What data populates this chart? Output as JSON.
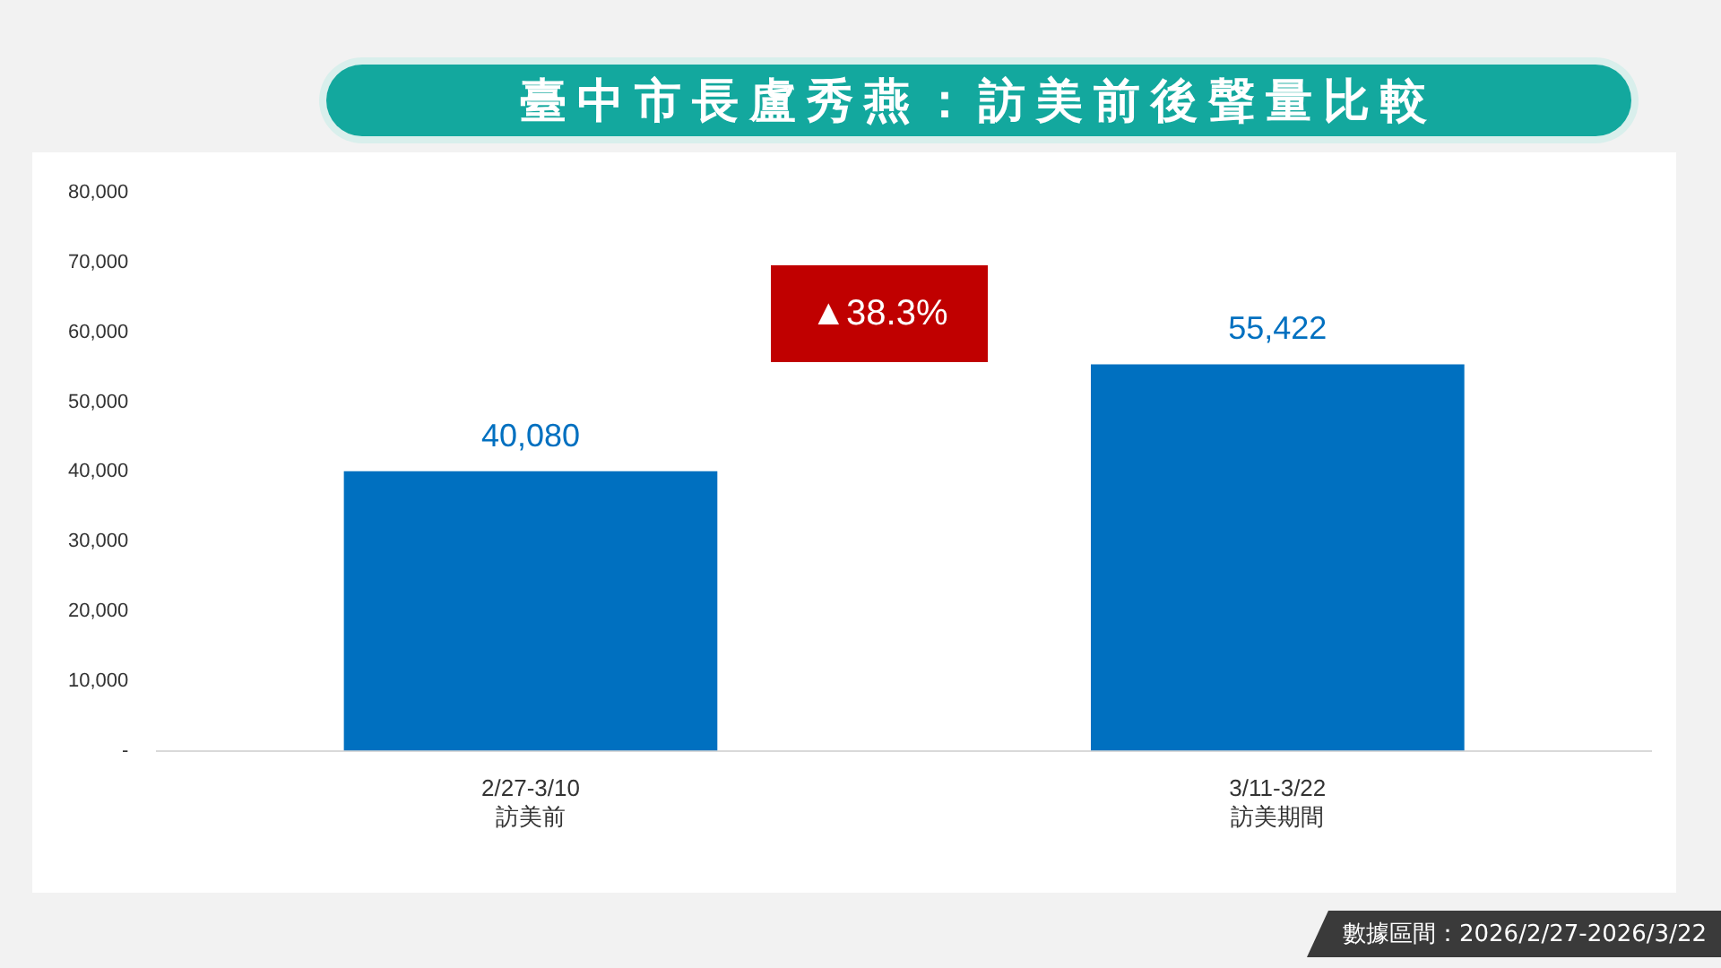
{
  "chart_data": {
    "type": "bar",
    "title": "臺中市長盧秀燕：訪美前後聲量比較",
    "categories": [
      "2/27-3/10\n訪美前",
      "3/11-3/22\n訪美期間"
    ],
    "values": [
      40080,
      55422
    ],
    "color": "#0070c0",
    "value_labels": [
      "40,080",
      "55,422"
    ],
    "ylim": [
      0,
      80000
    ],
    "yticks": [
      {
        "value": 0,
        "label": "-"
      },
      {
        "value": 10000,
        "label": "10,000"
      },
      {
        "value": 20000,
        "label": "20,000"
      },
      {
        "value": 30000,
        "label": "30,000"
      },
      {
        "value": 40000,
        "label": "40,000"
      },
      {
        "value": 50000,
        "label": "50,000"
      },
      {
        "value": 60000,
        "label": "60,000"
      },
      {
        "value": 70000,
        "label": "70,000"
      },
      {
        "value": 80000,
        "label": "80,000"
      }
    ],
    "grid": false,
    "legend": false,
    "annotations": [
      "▲38.3%",
      "數據區間：2026/2/27-2026/3/22"
    ]
  }
}
